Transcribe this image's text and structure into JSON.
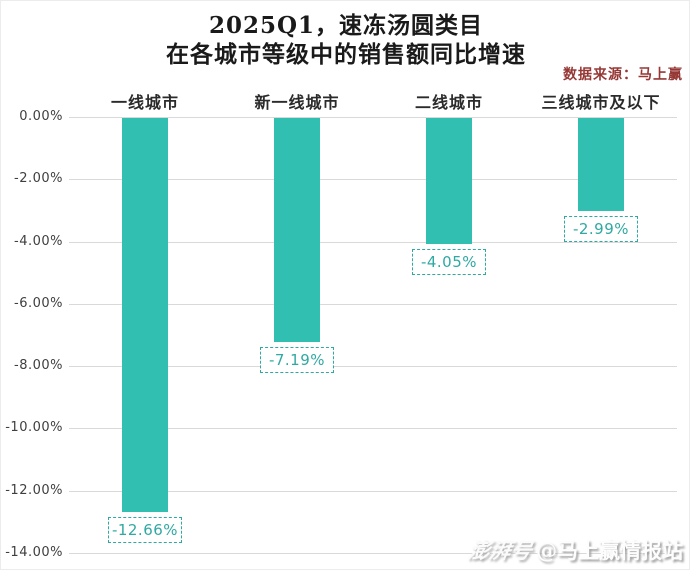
{
  "title": {
    "line1": "2025Q1，速冻汤圆类目",
    "line2": "在各城市等级中的销售额同比增速"
  },
  "source_note": "数据来源：马上赢",
  "watermark": {
    "logo": "澎湃号",
    "handle": "@马上赢情报站"
  },
  "colors": {
    "bar": "#31BFB2",
    "value_label_text": "#2FA9A2",
    "value_label_border": "#2FA9A2",
    "grid": "#D9D9D9",
    "axis_text": "#3F3F3F",
    "source_text": "#953735"
  },
  "chart_data": {
    "type": "bar",
    "title": "2025Q1，速冻汤圆类目 在各城市等级中的销售额同比增速",
    "categories": [
      "一线城市",
      "新一线城市",
      "二线城市",
      "三线城市及以下"
    ],
    "values": [
      -12.66,
      -7.19,
      -4.05,
      -2.99
    ],
    "value_labels": [
      "-12.66%",
      "-7.19%",
      "-4.05%",
      "-2.99%"
    ],
    "unit": "%",
    "xlabel": "",
    "ylabel": "",
    "ylim": [
      -14,
      0
    ],
    "ytick_step": 2,
    "ytick_labels": [
      "0.00%",
      "-2.00%",
      "-4.00%",
      "-6.00%",
      "-8.00%",
      "-10.00%",
      "-12.00%",
      "-14.00%"
    ],
    "grid": true,
    "legend": false,
    "bar_orientation": "vertical-down"
  }
}
